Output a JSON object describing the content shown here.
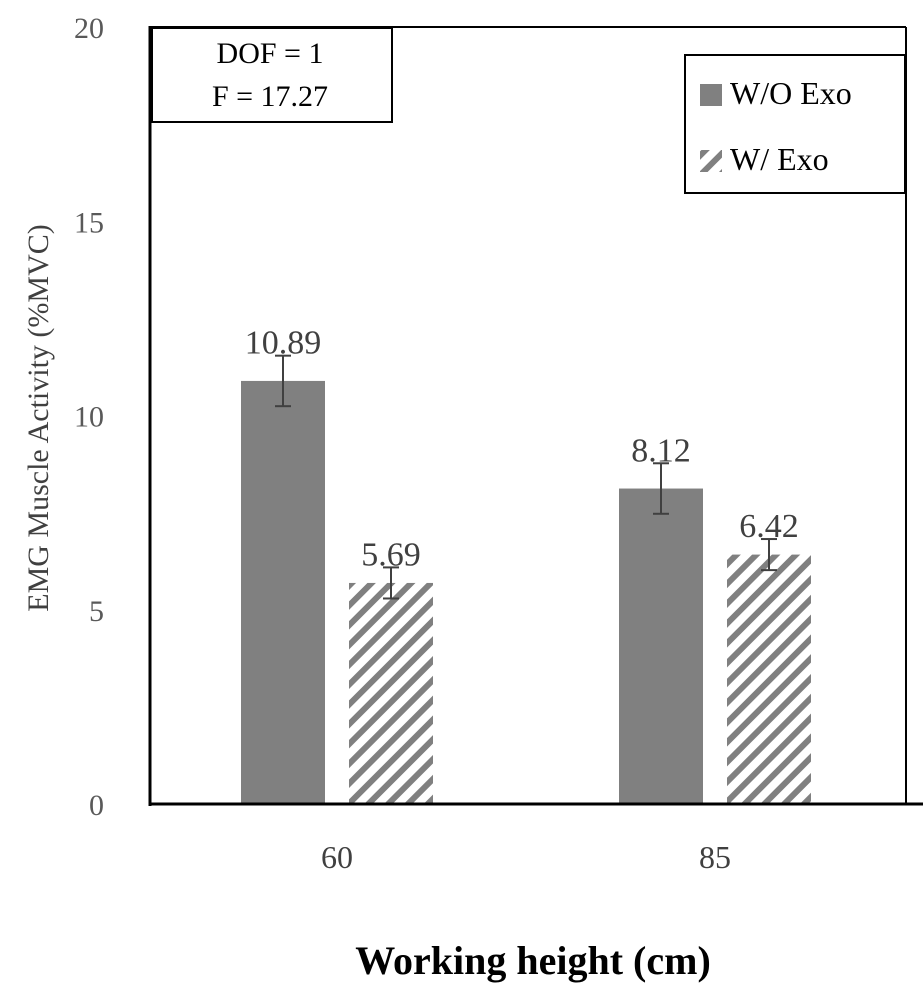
{
  "chart_data": {
    "type": "bar",
    "title": "",
    "xlabel": "Working height (cm)",
    "ylabel": "EMG Muscle  Activity  (%MVC)",
    "categories": [
      "60",
      "85"
    ],
    "ylim": [
      0,
      20
    ],
    "yticks": [
      0,
      5,
      10,
      15,
      20
    ],
    "series": [
      {
        "name": "W/O Exo",
        "values": [
          10.89,
          8.12
        ],
        "labels": [
          "10.89",
          "8.12"
        ],
        "error": [
          0.65,
          0.65
        ],
        "color": "#808080",
        "pattern": "solid"
      },
      {
        "name": "W/ Exo",
        "values": [
          5.69,
          6.42
        ],
        "labels": [
          "5.69",
          "6.42"
        ],
        "error": [
          0.4,
          0.4
        ],
        "color": "#808080",
        "pattern": "diagonal-hatch"
      }
    ],
    "annotation": {
      "line1": "DOF = 1",
      "line2": "F = 17.27"
    },
    "legend_position": "top-right",
    "grid": false
  }
}
